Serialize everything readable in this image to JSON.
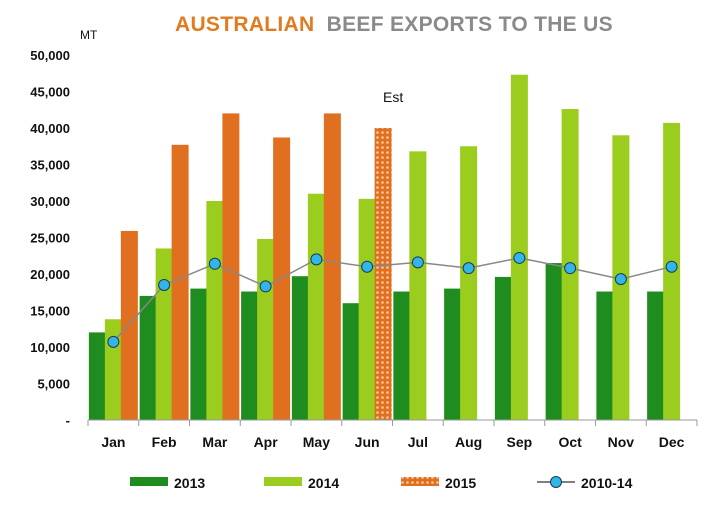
{
  "chart_data": {
    "type": "bar",
    "title_part1": "AUSTRALIAN",
    "title_part2": "BEEF EXPORTS TO THE US",
    "unit_label": "MT",
    "annotation": "Est",
    "categories": [
      "Jan",
      "Feb",
      "Mar",
      "Apr",
      "May",
      "Jun",
      "Jul",
      "Aug",
      "Sep",
      "Oct",
      "Nov",
      "Dec"
    ],
    "y_ticks": [
      "-",
      "5,000",
      "10,000",
      "15,000",
      "20,000",
      "25,000",
      "30,000",
      "35,000",
      "40,000",
      "45,000",
      "50,000"
    ],
    "ylim": [
      0,
      50000
    ],
    "series": [
      {
        "name": "2013",
        "kind": "bar",
        "color": "#1e8c1e",
        "values": [
          12000,
          17000,
          18000,
          17600,
          19700,
          16000,
          17600,
          18000,
          19600,
          21500,
          17600,
          17600
        ]
      },
      {
        "name": "2014",
        "kind": "bar",
        "color": "#9acd1e",
        "values": [
          13800,
          23500,
          30000,
          24800,
          31000,
          30300,
          36800,
          37500,
          47300,
          42600,
          39000,
          40700
        ]
      },
      {
        "name": "2015",
        "kind": "bar",
        "color": "#e07020",
        "pattern_color": "#f6c8a0",
        "values": [
          25900,
          37700,
          42000,
          38700,
          42000,
          40000,
          null,
          null,
          null,
          null,
          null,
          null
        ],
        "estimated": [
          false,
          false,
          false,
          false,
          false,
          true,
          false,
          false,
          false,
          false,
          false,
          false
        ]
      },
      {
        "name": "2010-14",
        "kind": "line",
        "color": "#33b5e8",
        "line_color": "#888888",
        "values": [
          10700,
          18500,
          21400,
          18300,
          22000,
          21000,
          21600,
          20800,
          22200,
          20800,
          19300,
          21000
        ]
      }
    ],
    "grid": false,
    "legend_position": "bottom",
    "colors": {
      "title_accent": "#e07b20",
      "title_main": "#8a8a8a",
      "axis": "#999999"
    }
  }
}
